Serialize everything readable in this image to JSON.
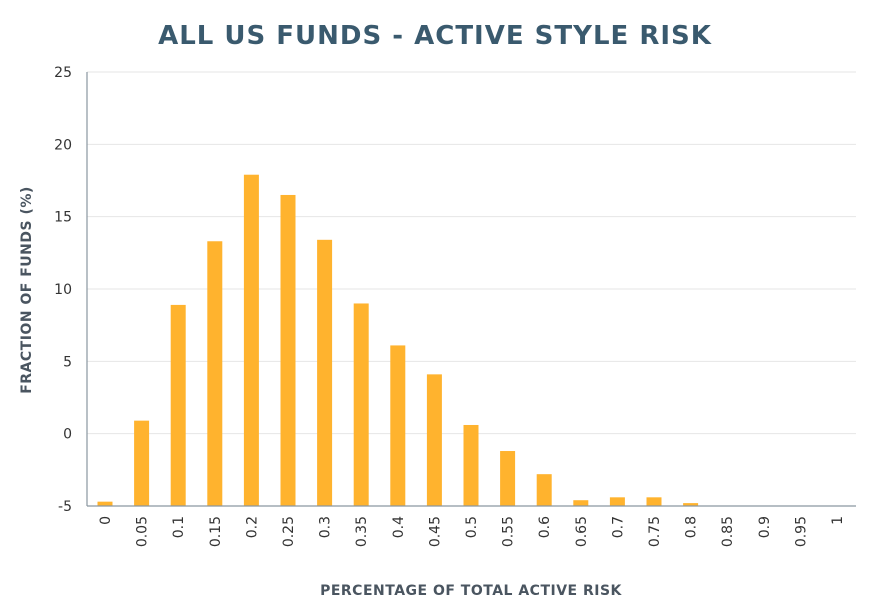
{
  "chart_data": {
    "type": "bar",
    "title": "ALL US FUNDS - ACTIVE STYLE RISK",
    "xlabel": "PERCENTAGE OF TOTAL ACTIVE RISK",
    "ylabel": "FRACTION OF FUNDS (%)",
    "categories": [
      "0",
      "0.05",
      "0.1",
      "0.15",
      "0.2",
      "0.25",
      "0.3",
      "0.35",
      "0.4",
      "0.45",
      "0.5",
      "0.55",
      "0.6",
      "0.65",
      "0.7",
      "0.75",
      "0.8",
      "0.85",
      "0.9",
      "0.95",
      "1"
    ],
    "values": [
      -4.7,
      0.9,
      8.9,
      13.3,
      17.9,
      16.5,
      13.4,
      9.0,
      6.1,
      4.1,
      0.6,
      -1.2,
      -2.8,
      -4.6,
      -4.4,
      -4.4,
      -4.8,
      null,
      null,
      null,
      null
    ],
    "yticks": [
      "25",
      "20",
      "15",
      "10",
      "5",
      "0",
      "-5"
    ],
    "ylim": [
      -5,
      25
    ],
    "grid": true,
    "bar_color": "#ffb32e"
  }
}
